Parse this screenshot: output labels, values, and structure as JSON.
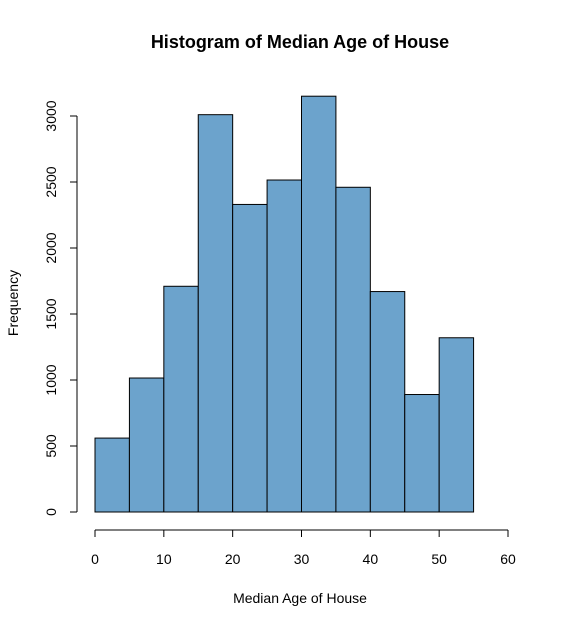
{
  "chart_data": {
    "type": "bar",
    "title": "Histogram of Median Age of House",
    "xlabel": "Median Age of House",
    "ylabel": "Frequency",
    "bins": [
      {
        "x0": 0,
        "x1": 5,
        "value": 560
      },
      {
        "x0": 5,
        "x1": 10,
        "value": 1015
      },
      {
        "x0": 10,
        "x1": 15,
        "value": 1710
      },
      {
        "x0": 15,
        "x1": 20,
        "value": 3010
      },
      {
        "x0": 20,
        "x1": 25,
        "value": 2330
      },
      {
        "x0": 25,
        "x1": 30,
        "value": 2515
      },
      {
        "x0": 30,
        "x1": 35,
        "value": 3150
      },
      {
        "x0": 35,
        "x1": 40,
        "value": 2460
      },
      {
        "x0": 40,
        "x1": 45,
        "value": 1670
      },
      {
        "x0": 45,
        "x1": 50,
        "value": 890
      },
      {
        "x0": 50,
        "x1": 55,
        "value": 1320
      }
    ],
    "xlim": [
      0,
      60
    ],
    "ylim": [
      0,
      3150
    ],
    "xticks": [
      0,
      10,
      20,
      30,
      40,
      50,
      60
    ],
    "yticks": [
      0,
      500,
      1000,
      1500,
      2000,
      2500,
      3000
    ],
    "bar_color": "#6ca3cc",
    "grid": false
  }
}
